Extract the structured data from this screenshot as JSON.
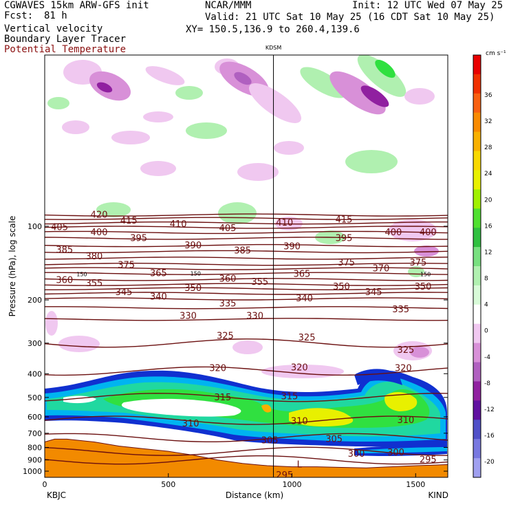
{
  "header": {
    "model": "CGWAVES 15km ARW-GFS init",
    "fcst_label": "Fcst:",
    "fcst_value": "81 h",
    "field1": "Vertical velocity",
    "field2": "Boundary Layer Tracer",
    "field3": "Potential Temperature",
    "org": "NCAR/MMM",
    "init": "Init: 12 UTC Wed 07 May 25",
    "valid": "Valid: 21 UTC Sat 10 May 25 (16 CDT Sat 10 May 25)",
    "xy": "XY= 150.5,136.9 to 260.4,139.6"
  },
  "colors": {
    "theta": "#6b0f0f",
    "land": "#f28a00",
    "bl_tracer_scale": [
      "#1030d0",
      "#00b4f0",
      "#20d8a0",
      "#30e040",
      "#e8f000",
      "#ffffff"
    ]
  },
  "chart_data": {
    "type": "cross-section",
    "x_axis": {
      "title": "Distance (km)",
      "range": [
        0,
        1630
      ],
      "ticks": [
        0,
        500,
        1000,
        1500
      ],
      "left_endpoint": "KBJC",
      "right_endpoint": "KIND"
    },
    "y_axis": {
      "title": "Pressure (hPa), log scale",
      "scale": "log",
      "range": [
        1060,
        20
      ],
      "ticks": [
        100,
        200,
        300,
        400,
        500,
        600,
        700,
        800,
        900,
        1000
      ]
    },
    "station_marker": {
      "label": "KDSM",
      "distance_km": 925
    },
    "colorbar": {
      "unit": "cm s⁻¹",
      "levels": [
        36,
        32,
        28,
        24,
        20,
        16,
        12,
        8,
        4,
        0,
        -4,
        -8,
        -12,
        -16,
        -20
      ],
      "colors": [
        "#e80000",
        "#f03000",
        "#f86010",
        "#f88a00",
        "#f8b000",
        "#f8d800",
        "#e8f000",
        "#a0f000",
        "#50e030",
        "#30c040",
        "#78e080",
        "#b0f0b0",
        "#d8fad8",
        "#ffffff",
        "#f0c8f0",
        "#d890d8",
        "#b060c0",
        "#9020a0",
        "#6010a0",
        "#5050c8",
        "#7878e0",
        "#a0a0f0"
      ]
    },
    "theta_contours": [
      {
        "value": 420,
        "pressure": 90
      },
      {
        "value": 415,
        "pressure": 93
      },
      {
        "value": 410,
        "pressure": 97
      },
      {
        "value": 405,
        "pressure": 101
      },
      {
        "value": 400,
        "pressure": 106
      },
      {
        "value": 395,
        "pressure": 112
      },
      {
        "value": 390,
        "pressure": 120
      },
      {
        "value": 385,
        "pressure": 127
      },
      {
        "value": 380,
        "pressure": 135
      },
      {
        "value": 375,
        "pressure": 143
      },
      {
        "value": 370,
        "pressure": 149
      },
      {
        "value": 365,
        "pressure": 156
      },
      {
        "value": 360,
        "pressure": 165
      },
      {
        "value": 355,
        "pressure": 173
      },
      {
        "value": 350,
        "pressure": 180
      },
      {
        "value": 345,
        "pressure": 188
      },
      {
        "value": 340,
        "pressure": 198
      },
      {
        "value": 335,
        "pressure": 215
      },
      {
        "value": 330,
        "pressure": 240
      },
      {
        "value": 325,
        "pressure": 300
      },
      {
        "value": 320,
        "pressure": 390
      },
      {
        "value": 315,
        "pressure": 500
      },
      {
        "value": 310,
        "pressure": 620
      },
      {
        "value": 305,
        "pressure": 730
      },
      {
        "value": 300,
        "pressure": 830
      },
      {
        "value": 295,
        "pressure": 900
      }
    ],
    "contour_labels": [
      {
        "text": "420",
        "x_km": 220,
        "p": 90
      },
      {
        "text": "415",
        "x_km": 340,
        "p": 95
      },
      {
        "text": "410",
        "x_km": 540,
        "p": 98
      },
      {
        "text": "405",
        "x_km": 60,
        "p": 101
      },
      {
        "text": "405",
        "x_km": 740,
        "p": 102
      },
      {
        "text": "410",
        "x_km": 970,
        "p": 97
      },
      {
        "text": "415",
        "x_km": 1210,
        "p": 94
      },
      {
        "text": "400",
        "x_km": 220,
        "p": 106
      },
      {
        "text": "395",
        "x_km": 380,
        "p": 112
      },
      {
        "text": "400",
        "x_km": 1410,
        "p": 106
      },
      {
        "text": "400",
        "x_km": 1550,
        "p": 106
      },
      {
        "text": "395",
        "x_km": 1210,
        "p": 112
      },
      {
        "text": "390",
        "x_km": 600,
        "p": 120
      },
      {
        "text": "385",
        "x_km": 80,
        "p": 125
      },
      {
        "text": "385",
        "x_km": 800,
        "p": 126
      },
      {
        "text": "390",
        "x_km": 1000,
        "p": 121
      },
      {
        "text": "380",
        "x_km": 200,
        "p": 133
      },
      {
        "text": "375",
        "x_km": 330,
        "p": 144
      },
      {
        "text": "375",
        "x_km": 1220,
        "p": 141
      },
      {
        "text": "370",
        "x_km": 1360,
        "p": 149
      },
      {
        "text": "375",
        "x_km": 1510,
        "p": 141
      },
      {
        "text": "360",
        "x_km": 80,
        "p": 166
      },
      {
        "text": "355",
        "x_km": 200,
        "p": 171
      },
      {
        "text": "365",
        "x_km": 460,
        "p": 156
      },
      {
        "text": "360",
        "x_km": 740,
        "p": 164
      },
      {
        "text": "355",
        "x_km": 870,
        "p": 169
      },
      {
        "text": "365",
        "x_km": 1040,
        "p": 157
      },
      {
        "text": "345",
        "x_km": 320,
        "p": 186
      },
      {
        "text": "340",
        "x_km": 460,
        "p": 194
      },
      {
        "text": "350",
        "x_km": 600,
        "p": 179
      },
      {
        "text": "350",
        "x_km": 1200,
        "p": 177
      },
      {
        "text": "345",
        "x_km": 1330,
        "p": 186
      },
      {
        "text": "350",
        "x_km": 1530,
        "p": 177
      },
      {
        "text": "340",
        "x_km": 1050,
        "p": 197
      },
      {
        "text": "335",
        "x_km": 740,
        "p": 207
      },
      {
        "text": "335",
        "x_km": 1440,
        "p": 219
      },
      {
        "text": "330",
        "x_km": 580,
        "p": 233
      },
      {
        "text": "330",
        "x_km": 850,
        "p": 233
      },
      {
        "text": "325",
        "x_km": 730,
        "p": 281
      },
      {
        "text": "325",
        "x_km": 1060,
        "p": 285
      },
      {
        "text": "325",
        "x_km": 1460,
        "p": 320
      },
      {
        "text": "320",
        "x_km": 700,
        "p": 380
      },
      {
        "text": "320",
        "x_km": 1030,
        "p": 378
      },
      {
        "text": "320",
        "x_km": 1450,
        "p": 380
      },
      {
        "text": "315",
        "x_km": 720,
        "p": 500
      },
      {
        "text": "315",
        "x_km": 990,
        "p": 496
      },
      {
        "text": "310",
        "x_km": 590,
        "p": 640
      },
      {
        "text": "310",
        "x_km": 1030,
        "p": 625
      },
      {
        "text": "310",
        "x_km": 1460,
        "p": 620
      },
      {
        "text": "305",
        "x_km": 910,
        "p": 750
      },
      {
        "text": "305",
        "x_km": 1170,
        "p": 740
      },
      {
        "text": "300",
        "x_km": 1260,
        "p": 850
      },
      {
        "text": "300",
        "x_km": 1420,
        "p": 840
      },
      {
        "text": "295",
        "x_km": 1550,
        "p": 900
      },
      {
        "text": "295",
        "x_km": 970,
        "p": 1040
      },
      {
        "text": "L",
        "x_km": 1030,
        "p": 940
      },
      {
        "text": "150",
        "x_km": 150,
        "p": 156,
        "small": true
      },
      {
        "text": "150",
        "x_km": 610,
        "p": 155,
        "small": true
      },
      {
        "text": "150",
        "x_km": 1540,
        "p": 156,
        "small": true
      }
    ],
    "terrain_pressure": [
      {
        "x_km": 0,
        "p": 760
      },
      {
        "x_km": 40,
        "p": 740
      },
      {
        "x_km": 90,
        "p": 740
      },
      {
        "x_km": 200,
        "p": 760
      },
      {
        "x_km": 300,
        "p": 790
      },
      {
        "x_km": 400,
        "p": 810
      },
      {
        "x_km": 500,
        "p": 830
      },
      {
        "x_km": 600,
        "p": 860
      },
      {
        "x_km": 700,
        "p": 900
      },
      {
        "x_km": 800,
        "p": 930
      },
      {
        "x_km": 900,
        "p": 950
      },
      {
        "x_km": 1000,
        "p": 960
      },
      {
        "x_km": 1100,
        "p": 960
      },
      {
        "x_km": 1200,
        "p": 965
      },
      {
        "x_km": 1300,
        "p": 970
      },
      {
        "x_km": 1400,
        "p": 960
      },
      {
        "x_km": 1500,
        "p": 950
      },
      {
        "x_km": 1630,
        "p": 940
      }
    ],
    "grid": false
  }
}
